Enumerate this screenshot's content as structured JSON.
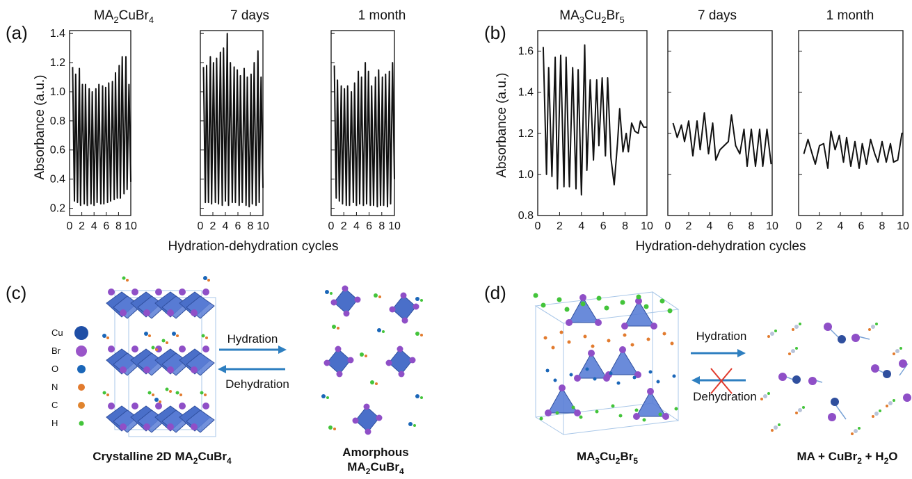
{
  "panels": {
    "a": "(a)",
    "b": "(b)",
    "c": "(c)",
    "d": "(d)"
  },
  "axis": {
    "ylabel_a": "Absorbance (a.u.)",
    "ylabel_b": "Absorbance (a.u.)",
    "xlabel_a": "Hydration-dehydration cycles",
    "xlabel_b": "Hydration-dehydration cycles"
  },
  "chart_data": [
    {
      "type": "line",
      "panel": "a",
      "subplot_titles": [
        {
          "main": "MA",
          "sub1": "2",
          "mid": "CuBr",
          "sub2": "4"
        },
        {
          "main": "7 days"
        },
        {
          "main": "1 month"
        }
      ],
      "xlim": [
        0,
        10
      ],
      "ylim": [
        0.15,
        1.42
      ],
      "x_ticks": [
        "0",
        "2",
        "4",
        "6",
        "8",
        "10"
      ],
      "y_ticks": [
        "0.2",
        "0.4",
        "0.6",
        "0.8",
        "1.0",
        "1.2",
        "1.4"
      ],
      "y_tick_values": [
        0.2,
        0.4,
        0.6,
        0.8,
        1.0,
        1.2,
        1.4
      ],
      "series": [
        {
          "x": [
            0.5,
            0.8,
            1.0,
            1.3,
            1.6,
            1.8,
            2.1,
            2.4,
            2.6,
            2.9,
            3.2,
            3.5,
            3.7,
            4.0,
            4.3,
            4.5,
            4.8,
            5.1,
            5.4,
            5.6,
            5.9,
            6.2,
            6.4,
            6.7,
            7.0,
            7.3,
            7.5,
            7.8,
            8.1,
            8.3,
            8.6,
            8.9,
            9.2,
            9.4,
            9.7,
            10.0
          ],
          "y": [
            1.17,
            0.25,
            1.12,
            0.24,
            1.16,
            0.22,
            1.05,
            0.23,
            1.05,
            0.22,
            1.02,
            0.23,
            1.0,
            0.22,
            1.02,
            0.24,
            1.05,
            0.23,
            1.04,
            0.23,
            1.03,
            0.24,
            1.06,
            0.25,
            1.07,
            0.26,
            1.13,
            0.27,
            1.18,
            0.27,
            1.24,
            0.3,
            1.24,
            0.33,
            1.05,
            0.38
          ]
        },
        {
          "x": [
            0.5,
            0.8,
            1.0,
            1.3,
            1.6,
            1.8,
            2.1,
            2.4,
            2.6,
            2.9,
            3.2,
            3.5,
            3.7,
            4.0,
            4.3,
            4.5,
            4.8,
            5.1,
            5.4,
            5.6,
            5.9,
            6.2,
            6.4,
            6.7,
            7.0,
            7.3,
            7.5,
            7.8,
            8.1,
            8.3,
            8.6,
            8.9,
            9.2,
            9.4,
            9.7,
            10.0
          ],
          "y": [
            1.17,
            0.24,
            1.18,
            0.24,
            1.24,
            0.23,
            1.2,
            0.24,
            1.23,
            0.23,
            1.27,
            0.22,
            1.3,
            0.25,
            1.4,
            0.22,
            1.2,
            0.24,
            1.17,
            0.24,
            1.15,
            0.22,
            1.11,
            0.24,
            1.16,
            0.22,
            1.1,
            0.21,
            1.12,
            0.23,
            1.2,
            0.22,
            1.28,
            0.24,
            1.1,
            0.34
          ]
        },
        {
          "x": [
            0.5,
            0.8,
            1.0,
            1.3,
            1.6,
            1.8,
            2.1,
            2.4,
            2.6,
            2.9,
            3.2,
            3.5,
            3.7,
            4.0,
            4.3,
            4.5,
            4.8,
            5.1,
            5.4,
            5.6,
            5.9,
            6.2,
            6.4,
            6.7,
            7.0,
            7.3,
            7.5,
            7.8,
            8.1,
            8.3,
            8.6,
            8.9,
            9.2,
            9.4,
            9.7,
            10.0
          ],
          "y": [
            1.18,
            0.27,
            1.08,
            0.25,
            1.04,
            0.23,
            1.02,
            0.22,
            1.04,
            0.22,
            1.0,
            0.24,
            1.06,
            0.22,
            1.14,
            0.23,
            1.1,
            0.22,
            1.2,
            0.23,
            1.14,
            0.22,
            1.04,
            0.22,
            1.1,
            0.21,
            1.15,
            0.22,
            1.1,
            0.22,
            1.12,
            0.21,
            1.14,
            0.23,
            1.2,
            0.4
          ]
        }
      ]
    },
    {
      "type": "line",
      "panel": "b",
      "subplot_titles": [
        {
          "main": "MA",
          "sub1": "3",
          "mid": "Cu",
          "sub2": "2",
          "mid2": "Br",
          "sub3": "5"
        },
        {
          "main": "7 days"
        },
        {
          "main": "1 month"
        }
      ],
      "xlim": [
        0,
        10
      ],
      "ylim": [
        0.8,
        1.7
      ],
      "x_ticks": [
        "0",
        "2",
        "4",
        "6",
        "8",
        "10"
      ],
      "y_ticks": [
        "0.8",
        "1.0",
        "1.2",
        "1.4",
        "1.6"
      ],
      "y_tick_values": [
        0.8,
        1.0,
        1.2,
        1.4,
        1.6
      ],
      "series": [
        {
          "x": [
            0.5,
            0.8,
            1.0,
            1.3,
            1.6,
            1.8,
            2.1,
            2.4,
            2.6,
            2.9,
            3.2,
            3.5,
            3.7,
            4.0,
            4.3,
            4.5,
            4.8,
            5.1,
            5.4,
            5.6,
            5.9,
            6.2,
            6.4,
            6.7,
            7.0,
            7.3,
            7.5,
            7.8,
            8.1,
            8.3,
            8.6,
            8.9,
            9.2,
            9.4,
            9.7,
            10.0
          ],
          "y": [
            1.62,
            1.0,
            1.52,
            0.99,
            1.57,
            0.93,
            1.58,
            0.94,
            1.57,
            0.94,
            1.52,
            0.93,
            1.51,
            0.9,
            1.63,
            1.02,
            1.46,
            1.07,
            1.46,
            1.14,
            1.47,
            1.09,
            1.47,
            1.08,
            0.95,
            1.15,
            1.32,
            1.11,
            1.2,
            1.11,
            1.25,
            1.21,
            1.2,
            1.26,
            1.23,
            1.23
          ]
        },
        {
          "x": [
            0.5,
            0.9,
            1.3,
            1.6,
            2.0,
            2.4,
            2.8,
            3.1,
            3.5,
            3.9,
            4.3,
            4.6,
            5.0,
            5.4,
            5.8,
            6.1,
            6.5,
            6.9,
            7.3,
            7.6,
            8.0,
            8.4,
            8.8,
            9.1,
            9.5,
            9.9
          ],
          "y": [
            1.25,
            1.18,
            1.24,
            1.16,
            1.26,
            1.09,
            1.26,
            1.12,
            1.3,
            1.1,
            1.25,
            1.07,
            1.12,
            1.14,
            1.16,
            1.29,
            1.14,
            1.1,
            1.22,
            1.04,
            1.22,
            1.04,
            1.22,
            1.04,
            1.22,
            1.05
          ]
        },
        {
          "x": [
            0.5,
            0.9,
            1.3,
            1.6,
            2.0,
            2.4,
            2.8,
            3.1,
            3.5,
            3.9,
            4.3,
            4.6,
            5.0,
            5.4,
            5.8,
            6.1,
            6.5,
            6.9,
            7.3,
            7.6,
            8.0,
            8.4,
            8.8,
            9.1,
            9.5,
            9.9,
            10.0
          ],
          "y": [
            1.1,
            1.17,
            1.1,
            1.05,
            1.14,
            1.15,
            1.03,
            1.21,
            1.12,
            1.19,
            1.06,
            1.18,
            1.04,
            1.16,
            1.03,
            1.15,
            1.05,
            1.17,
            1.1,
            1.06,
            1.16,
            1.06,
            1.15,
            1.06,
            1.07,
            1.2,
            1.2
          ]
        }
      ]
    }
  ],
  "c": {
    "legend": [
      "Cu",
      "Br",
      "O",
      "N",
      "C",
      "H"
    ],
    "legend_colors": [
      "#1f4fa6",
      "#9a55c9",
      "#1a66b8",
      "#e27b2e",
      "#e0842e",
      "#43c43a"
    ],
    "hydration": "Hydration",
    "dehydration": "Dehydration",
    "arrow_color": "#2e7fc0",
    "cap_left_pre": "Crystalline 2D MA",
    "cap_left_sub1": "2",
    "cap_left_mid": "CuBr",
    "cap_left_sub2": "4",
    "cap_right_line1": "Amorphous",
    "cap_right_pre": "MA",
    "cap_right_sub1": "2",
    "cap_right_mid": "CuBr",
    "cap_right_sub2": "4"
  },
  "d": {
    "hydration": "Hydration",
    "dehydration": "Dehydration",
    "cross_color": "#e0392b",
    "cap_left_pre": "MA",
    "cap_left_sub1": "3",
    "cap_left_mid": "Cu",
    "cap_left_sub2": "2",
    "cap_left_mid2": "Br",
    "cap_left_sub3": "5",
    "cap_right_pre": "MA + CuBr",
    "cap_right_sub1": "2",
    "cap_right_mid": " + H",
    "cap_right_sub2": "2",
    "cap_right_end": "O"
  }
}
